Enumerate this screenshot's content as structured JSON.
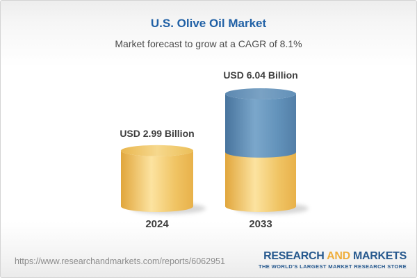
{
  "chart_data": {
    "type": "bar",
    "subtype": "3d-cylinder-stacked",
    "title": "U.S. Olive Oil Market",
    "subtitle": "Market forecast to grow at a CAGR of 8.1%",
    "cagr_percent": 8.1,
    "unit": "USD Billion",
    "categories": [
      "2024",
      "2033"
    ],
    "values": [
      2.99,
      6.04
    ],
    "value_labels": [
      "USD 2.99 Billion",
      "USD 6.04 Billion"
    ],
    "stacked_2033": {
      "base_2024_value": 2.99,
      "growth_value": 3.05
    },
    "layout": {
      "x_axis_visible": false,
      "y_axis_visible": false,
      "gridlines": false,
      "legend": false
    },
    "colors": {
      "bar_yellow": "#f0c468",
      "bar_blue": "#6593bb",
      "title_blue": "#2161a6",
      "label_text": "#3e3e3e"
    }
  },
  "footer": {
    "url": "https://www.researchandmarkets.com/reports/6062951",
    "logo": {
      "word1": "RESEARCH",
      "word2": "AND",
      "word3": "MARKETS",
      "tagline": "THE WORLD'S LARGEST MARKET RESEARCH STORE",
      "blue": "#27598e",
      "gold": "#efae3c"
    }
  }
}
